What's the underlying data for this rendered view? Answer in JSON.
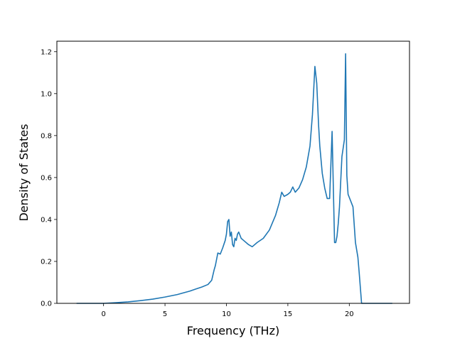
{
  "chart_data": {
    "type": "line",
    "title": "",
    "xlabel": "Frequency (THz)",
    "ylabel": "Density of States",
    "xlim": [
      -3.8,
      24.9
    ],
    "ylim": [
      0.0,
      1.25
    ],
    "x_ticks": [
      0,
      5,
      10,
      15,
      20
    ],
    "y_ticks": [
      0.0,
      0.2,
      0.4,
      0.6,
      0.8,
      1.0,
      1.2
    ],
    "x_tick_labels": [
      "0",
      "5",
      "10",
      "15",
      "20"
    ],
    "y_tick_labels": [
      "0.0",
      "0.2",
      "0.4",
      "0.6",
      "0.8",
      "1.0",
      "1.2"
    ],
    "grid": false,
    "legend": "none",
    "series": [
      {
        "color": "#1f77b4",
        "x": [
          -2.2,
          0.0,
          1.0,
          2.0,
          3.0,
          4.0,
          5.0,
          6.0,
          7.0,
          7.5,
          8.0,
          8.5,
          8.8,
          9.0,
          9.1,
          9.3,
          9.5,
          9.7,
          9.9,
          10.0,
          10.1,
          10.2,
          10.3,
          10.4,
          10.5,
          10.6,
          10.7,
          10.8,
          10.9,
          11.0,
          11.2,
          11.4,
          11.8,
          12.1,
          12.5,
          13.0,
          13.5,
          14.0,
          14.3,
          14.5,
          14.7,
          15.0,
          15.2,
          15.4,
          15.6,
          15.9,
          16.2,
          16.5,
          16.8,
          17.0,
          17.2,
          17.35,
          17.5,
          17.6,
          17.8,
          18.0,
          18.2,
          18.4,
          18.6,
          18.8,
          18.9,
          19.0,
          19.1,
          19.2,
          19.4,
          19.6,
          19.7,
          19.8,
          19.9,
          20.1,
          20.3,
          20.5,
          20.7,
          20.8,
          21.0,
          21.2,
          21.4,
          21.5,
          22.0,
          23.5
        ],
        "y": [
          0.0,
          0.0,
          0.003,
          0.007,
          0.013,
          0.02,
          0.03,
          0.042,
          0.058,
          0.068,
          0.078,
          0.09,
          0.11,
          0.16,
          0.18,
          0.24,
          0.235,
          0.265,
          0.3,
          0.33,
          0.39,
          0.4,
          0.32,
          0.34,
          0.28,
          0.27,
          0.31,
          0.3,
          0.33,
          0.34,
          0.31,
          0.3,
          0.28,
          0.27,
          0.29,
          0.31,
          0.35,
          0.42,
          0.48,
          0.53,
          0.51,
          0.52,
          0.53,
          0.555,
          0.53,
          0.55,
          0.59,
          0.65,
          0.75,
          0.9,
          1.13,
          1.05,
          0.85,
          0.75,
          0.62,
          0.55,
          0.5,
          0.5,
          0.82,
          0.29,
          0.29,
          0.32,
          0.38,
          0.46,
          0.7,
          0.78,
          1.19,
          0.61,
          0.52,
          0.49,
          0.46,
          0.29,
          0.22,
          0.15,
          0.0,
          0.0,
          0.0,
          0.0,
          0.0,
          0.0
        ]
      }
    ]
  }
}
